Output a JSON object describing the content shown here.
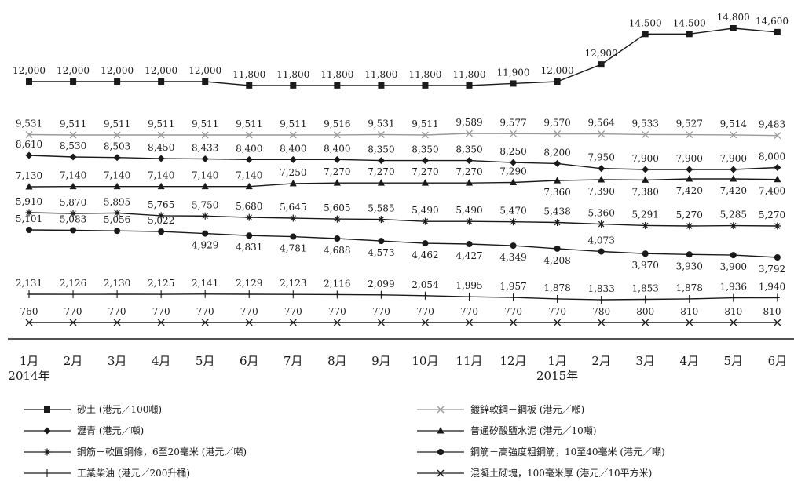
{
  "chart_data": {
    "type": "line",
    "categories": [
      "1月",
      "2月",
      "3月",
      "4月",
      "5月",
      "6月",
      "7月",
      "8月",
      "9月",
      "10月",
      "11月",
      "12月",
      "1月",
      "2月",
      "3月",
      "4月",
      "5月",
      "6月"
    ],
    "year_labels": [
      {
        "index": 0,
        "text": "2014年"
      },
      {
        "index": 12,
        "text": "2015年"
      }
    ],
    "grid": false,
    "legend_position": "bottom",
    "series": [
      {
        "key": "sand",
        "name": "砂土 (港元／100噸)",
        "color": "#1a1a1a",
        "marker": "square",
        "legend_col": 0,
        "legend_row": 0,
        "values": [
          12000,
          12000,
          12000,
          12000,
          12000,
          11800,
          11800,
          11800,
          11800,
          11800,
          11800,
          11900,
          12000,
          12900,
          14500,
          14500,
          14800,
          14600
        ],
        "labels": [
          "12,000",
          "12,000",
          "12,000",
          "12,000",
          "12,000",
          "11,800",
          "11,800",
          "11,800",
          "11,800",
          "11,800",
          "11,800",
          "11,900",
          "12,000",
          "12,900",
          "14,500",
          "14,500",
          "14,800",
          "14,600"
        ]
      },
      {
        "key": "galv",
        "name": "鍍鋅軟鋼－鋼板 (港元／噸)",
        "color": "#999999",
        "marker": "x",
        "legend_col": 1,
        "legend_row": 0,
        "values": [
          9531,
          9511,
          9511,
          9511,
          9511,
          9511,
          9511,
          9516,
          9531,
          9511,
          9589,
          9577,
          9570,
          9564,
          9533,
          9527,
          9514,
          9483
        ],
        "labels": [
          "9,531",
          "9,511",
          "9,511",
          "9,511",
          "9,511",
          "9,511",
          "9,511",
          "9,516",
          "9,531",
          "9,511",
          "9,589",
          "9,577",
          "9,570",
          "9,564",
          "9,533",
          "9,527",
          "9,514",
          "9,483"
        ]
      },
      {
        "key": "asphalt",
        "name": "瀝青 (港元／噸)",
        "color": "#1a1a1a",
        "marker": "diamond",
        "legend_col": 0,
        "legend_row": 1,
        "values": [
          8610,
          8530,
          8503,
          8450,
          8433,
          8400,
          8400,
          8400,
          8350,
          8350,
          8350,
          8250,
          8200,
          7950,
          7900,
          7900,
          7900,
          8000
        ],
        "labels": [
          "8,610",
          "8,530",
          "8,503",
          "8,450",
          "8,433",
          "8,400",
          "8,400",
          "8,400",
          "8,350",
          "8,350",
          "8,350",
          "8,250",
          "8,200",
          "7,950",
          "7,900",
          "7,900",
          "7,900",
          "8,000"
        ]
      },
      {
        "key": "cement",
        "name": "普通矽酸鹽水泥 (港元／10噸)",
        "color": "#1a1a1a",
        "marker": "triangle",
        "legend_col": 1,
        "legend_row": 1,
        "values": [
          7130,
          7140,
          7140,
          7140,
          7140,
          7140,
          7250,
          7270,
          7270,
          7270,
          7270,
          7290,
          7360,
          7390,
          7380,
          7420,
          7420,
          7400
        ],
        "labels": [
          "7,130",
          "7,140",
          "7,140",
          "7,140",
          "7,140",
          "7,140",
          "7,250",
          "7,270",
          "7,270",
          "7,270",
          "7,270",
          "7,290",
          "7,360",
          "7,390",
          "7,380",
          "7,420",
          "7,420",
          "7,400"
        ]
      },
      {
        "key": "mildsteel",
        "name": "鋼筋－軟圓鋼條，6至20毫米 (港元／噸)",
        "color": "#1a1a1a",
        "marker": "asterisk",
        "legend_col": 0,
        "legend_row": 2,
        "values": [
          5910,
          5870,
          5895,
          5765,
          5750,
          5680,
          5645,
          5605,
          5585,
          5490,
          5490,
          5470,
          5438,
          5360,
          5291,
          5270,
          5285,
          5270
        ],
        "labels": [
          "5,910",
          "5,870",
          "5,895",
          "5,765",
          "5,750",
          "5,680",
          "5,645",
          "5,605",
          "5,585",
          "5,490",
          "5,490",
          "5,470",
          "5,438",
          "5,360",
          "5,291",
          "5,270",
          "5,285",
          "5,270"
        ]
      },
      {
        "key": "hightensile",
        "name": "鋼筋－高強度粗鋼筋，10至40毫米 (港元／噸)",
        "color": "#1a1a1a",
        "marker": "circle",
        "legend_col": 1,
        "legend_row": 2,
        "values": [
          5101,
          5083,
          5056,
          5022,
          4929,
          4831,
          4781,
          4688,
          4573,
          4462,
          4427,
          4349,
          4208,
          4073,
          3970,
          3930,
          3900,
          3792
        ],
        "labels": [
          "5,101",
          "5,083",
          "5,056",
          "5,022",
          "4,929",
          "4,831",
          "4,781",
          "4,688",
          "4,573",
          "4,462",
          "4,427",
          "4,349",
          "4,208",
          "4,073",
          "3,970",
          "3,930",
          "3,900",
          "3,792"
        ]
      },
      {
        "key": "diesel",
        "name": "工業柴油 (港元／200升桶)",
        "color": "#1a1a1a",
        "marker": "plus",
        "legend_col": 0,
        "legend_row": 3,
        "values": [
          2131,
          2126,
          2130,
          2125,
          2141,
          2129,
          2123,
          2116,
          2099,
          2054,
          1995,
          1957,
          1878,
          1833,
          1853,
          1878,
          1936,
          1940
        ],
        "labels": [
          "2,131",
          "2,126",
          "2,130",
          "2,125",
          "2,141",
          "2,129",
          "2,123",
          "2,116",
          "2,099",
          "2,054",
          "1,995",
          "1,957",
          "1,878",
          "1,833",
          "1,853",
          "1,878",
          "1,936",
          "1,940"
        ]
      },
      {
        "key": "blocks",
        "name": "混凝土砌塊，100毫米厚 (港元／10平方米)",
        "color": "#1a1a1a",
        "marker": "x",
        "legend_col": 1,
        "legend_row": 3,
        "values": [
          760,
          770,
          770,
          770,
          770,
          770,
          770,
          770,
          770,
          770,
          770,
          770,
          770,
          780,
          800,
          810,
          810,
          810
        ],
        "labels": [
          "760",
          "770",
          "770",
          "770",
          "770",
          "770",
          "770",
          "770",
          "770",
          "770",
          "770",
          "770",
          "770",
          "780",
          "800",
          "810",
          "810",
          "810"
        ]
      }
    ]
  }
}
